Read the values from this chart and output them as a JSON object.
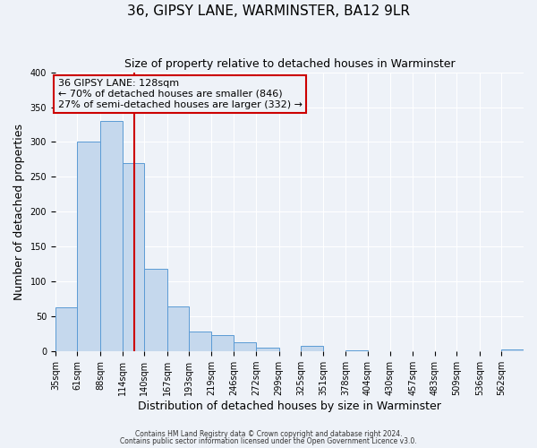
{
  "title": "36, GIPSY LANE, WARMINSTER, BA12 9LR",
  "subtitle": "Size of property relative to detached houses in Warminster",
  "xlabel": "Distribution of detached houses by size in Warminster",
  "ylabel": "Number of detached properties",
  "bin_labels": [
    "35sqm",
    "61sqm",
    "88sqm",
    "114sqm",
    "140sqm",
    "167sqm",
    "193sqm",
    "219sqm",
    "246sqm",
    "272sqm",
    "299sqm",
    "325sqm",
    "351sqm",
    "378sqm",
    "404sqm",
    "430sqm",
    "457sqm",
    "483sqm",
    "509sqm",
    "536sqm",
    "562sqm"
  ],
  "bar_values": [
    63,
    300,
    330,
    270,
    118,
    65,
    29,
    24,
    13,
    5,
    0,
    8,
    0,
    1,
    0,
    0,
    0,
    0,
    0,
    0,
    3
  ],
  "bar_color": "#c5d8ed",
  "bar_edge_color": "#5b9bd5",
  "property_line_x": 128,
  "bin_edges": [
    35,
    61,
    88,
    114,
    140,
    167,
    193,
    219,
    246,
    272,
    299,
    325,
    351,
    378,
    404,
    430,
    457,
    483,
    509,
    536,
    562,
    588
  ],
  "annotation_line1": "36 GIPSY LANE: 128sqm",
  "annotation_line2": "← 70% of detached houses are smaller (846)",
  "annotation_line3": "27% of semi-detached houses are larger (332) →",
  "annotation_box_color": "#cc0000",
  "ylim": [
    0,
    400
  ],
  "yticks": [
    0,
    50,
    100,
    150,
    200,
    250,
    300,
    350,
    400
  ],
  "background_color": "#eef2f8",
  "footer_text1": "Contains HM Land Registry data © Crown copyright and database right 2024.",
  "footer_text2": "Contains public sector information licensed under the Open Government Licence v3.0.",
  "grid_color": "#ffffff",
  "title_fontsize": 11,
  "subtitle_fontsize": 9,
  "axis_label_fontsize": 9,
  "tick_fontsize": 7,
  "annot_fontsize": 8
}
